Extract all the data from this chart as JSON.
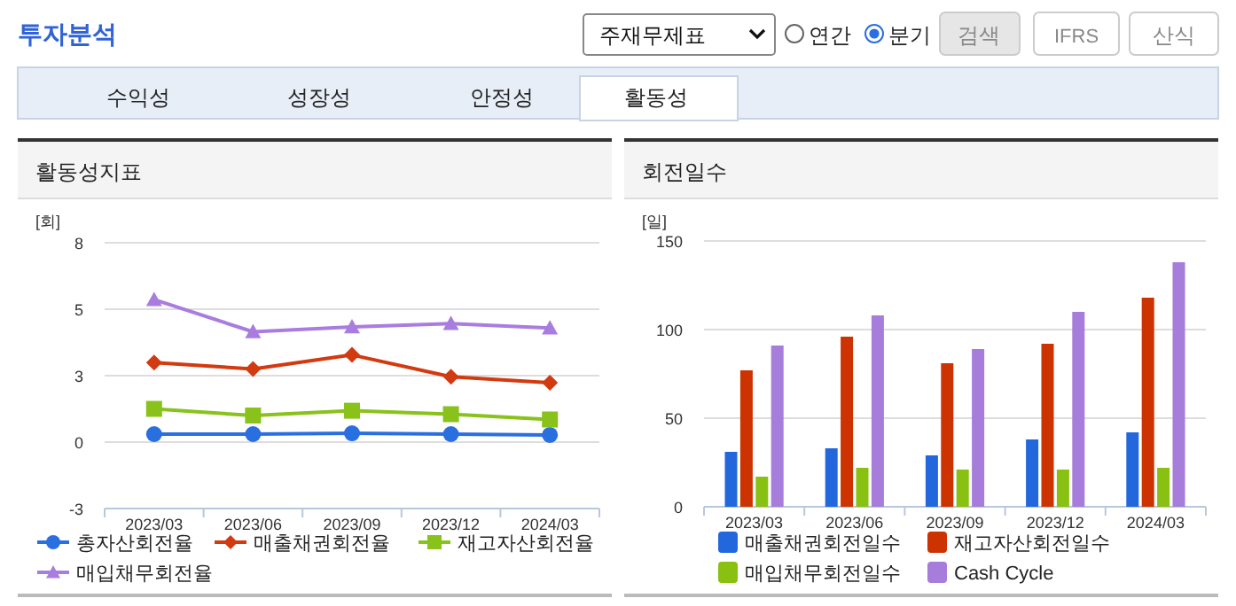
{
  "chart_data": [
    {
      "type": "line",
      "title": "활동성지표",
      "ylabel": "[회]",
      "categories": [
        "2023/03",
        "2023/06",
        "2023/09",
        "2023/12",
        "2024/03"
      ],
      "series": [
        {
          "name": "총자산회전율",
          "color": "#2a6fe0",
          "marker": "circle",
          "values": [
            0.3,
            0.3,
            0.33,
            0.3,
            0.27
          ]
        },
        {
          "name": "매출채권회전율",
          "color": "#d23a10",
          "marker": "diamond",
          "values": [
            2.99,
            2.75,
            3.28,
            2.46,
            2.23
          ]
        },
        {
          "name": "재고자산회전율",
          "color": "#88c21a",
          "marker": "square",
          "values": [
            1.25,
            1.0,
            1.18,
            1.05,
            0.85
          ]
        },
        {
          "name": "매입채무회전율",
          "color": "#a97de0",
          "marker": "triangle",
          "values": [
            5.36,
            4.15,
            4.33,
            4.46,
            4.29
          ]
        }
      ],
      "ylim": [
        -2.5,
        7.5
      ],
      "yticks": [
        {
          "value": -2.5,
          "label": "-3"
        },
        0,
        {
          "value": 2.5,
          "label": "3"
        },
        5,
        {
          "value": 7.5,
          "label": "8"
        }
      ],
      "grid": "y",
      "legend": "bottom",
      "annotations": [
        "투자분석",
        "주재무제표",
        "연간",
        "분기",
        "검색",
        "IFRS",
        "산식",
        "수익성",
        "성장성",
        "안정성",
        "활동성"
      ]
    },
    {
      "type": "bar",
      "title": "회전일수",
      "ylabel": "[일]",
      "categories": [
        "2023/03",
        "2023/06",
        "2023/09",
        "2023/12",
        "2024/03"
      ],
      "series": [
        {
          "name": "매출채권회전일수",
          "color": "#2268dc",
          "values": [
            31,
            33,
            29,
            38,
            42
          ]
        },
        {
          "name": "재고자산회전일수",
          "color": "#cc3300",
          "values": [
            77,
            96,
            81,
            92,
            118
          ]
        },
        {
          "name": "매입채무회전일수",
          "color": "#88c111",
          "values": [
            17,
            22,
            21,
            21,
            22
          ]
        },
        {
          "name": "Cash Cycle",
          "color": "#a67ddb",
          "values": [
            91,
            108,
            89,
            110,
            138
          ]
        }
      ],
      "ylim": [
        0,
        150
      ],
      "yticks": [
        0,
        50,
        100,
        150
      ],
      "grid": "y",
      "legend": "bottom"
    }
  ]
}
